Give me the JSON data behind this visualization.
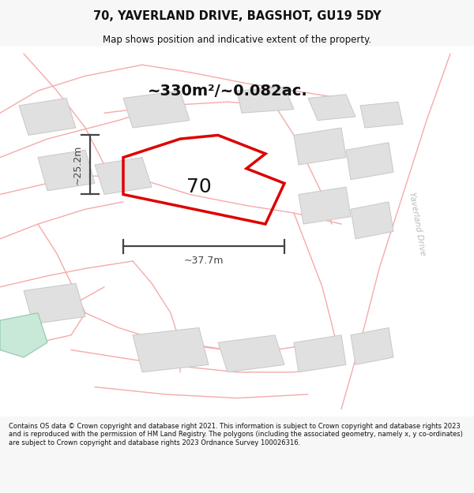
{
  "title_line1": "70, YAVERLAND DRIVE, BAGSHOT, GU19 5DY",
  "title_line2": "Map shows position and indicative extent of the property.",
  "area_text": "~330m²/~0.082ac.",
  "label_70": "70",
  "dim_height": "~25.2m",
  "dim_width": "~37.7m",
  "road_label": "Yaverland Drive",
  "footer_text": "Contains OS data © Crown copyright and database right 2021. This information is subject to Crown copyright and database rights 2023 and is reproduced with the permission of HM Land Registry. The polygons (including the associated geometry, namely x, y co-ordinates) are subject to Crown copyright and database rights 2023 Ordnance Survey 100026316.",
  "bg_color": "#f7f7f7",
  "map_bg": "#ffffff",
  "plot_edge": "#dd0000",
  "building_fill": "#e0e0e0",
  "building_edge": "#c8c8c8",
  "road_color": "#f5aaaa",
  "dim_line_color": "#444444",
  "text_color": "#111111",
  "footer_color": "#111111",
  "green_fill": "#c8e8d8",
  "road_label_color": "#bbbbbb"
}
